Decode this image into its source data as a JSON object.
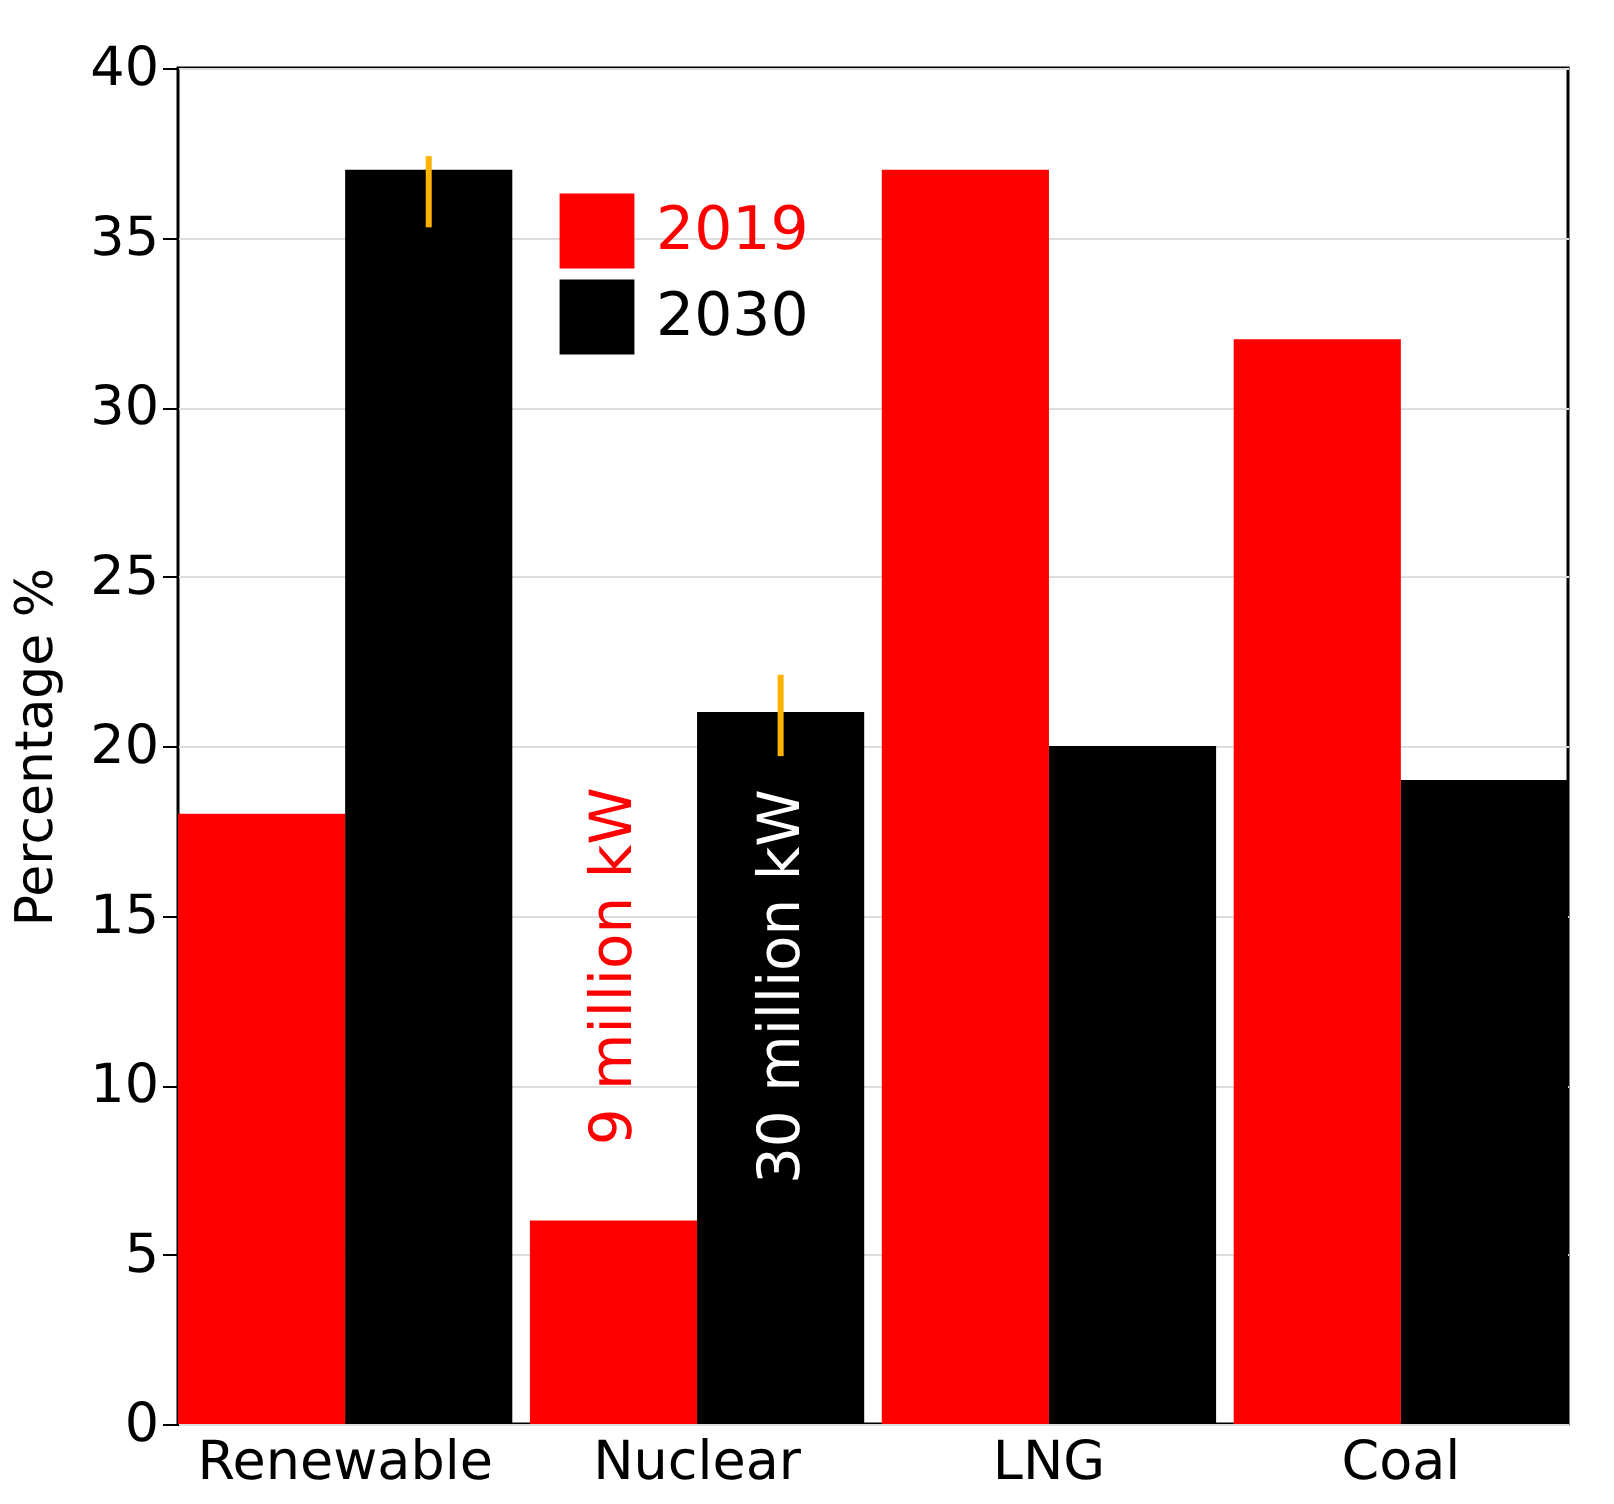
{
  "chart_data": {
    "type": "bar",
    "ylabel": "Percentage  %",
    "categories": [
      "Renewable",
      "Nuclear",
      "LNG",
      "Coal"
    ],
    "series": [
      {
        "name": "2019",
        "color": "#ff0000",
        "values": [
          18,
          6,
          37,
          32
        ]
      },
      {
        "name": "2030",
        "color": "#000000",
        "values": [
          37,
          21,
          20,
          19
        ],
        "errors": [
          [
            35.3,
            37.4
          ],
          [
            19.7,
            22.1
          ],
          null,
          null
        ]
      }
    ],
    "ylim": [
      0,
      40
    ],
    "yticks": [
      0,
      5,
      10,
      15,
      20,
      25,
      30,
      35,
      40
    ],
    "grid": "y",
    "legend": "top",
    "annotations": [
      {
        "text": "9 million kW",
        "x": "Nuclear",
        "y": 13.5
      },
      {
        "text": "30 million kW",
        "x": "Nuclear",
        "y": 12.9
      }
    ]
  }
}
